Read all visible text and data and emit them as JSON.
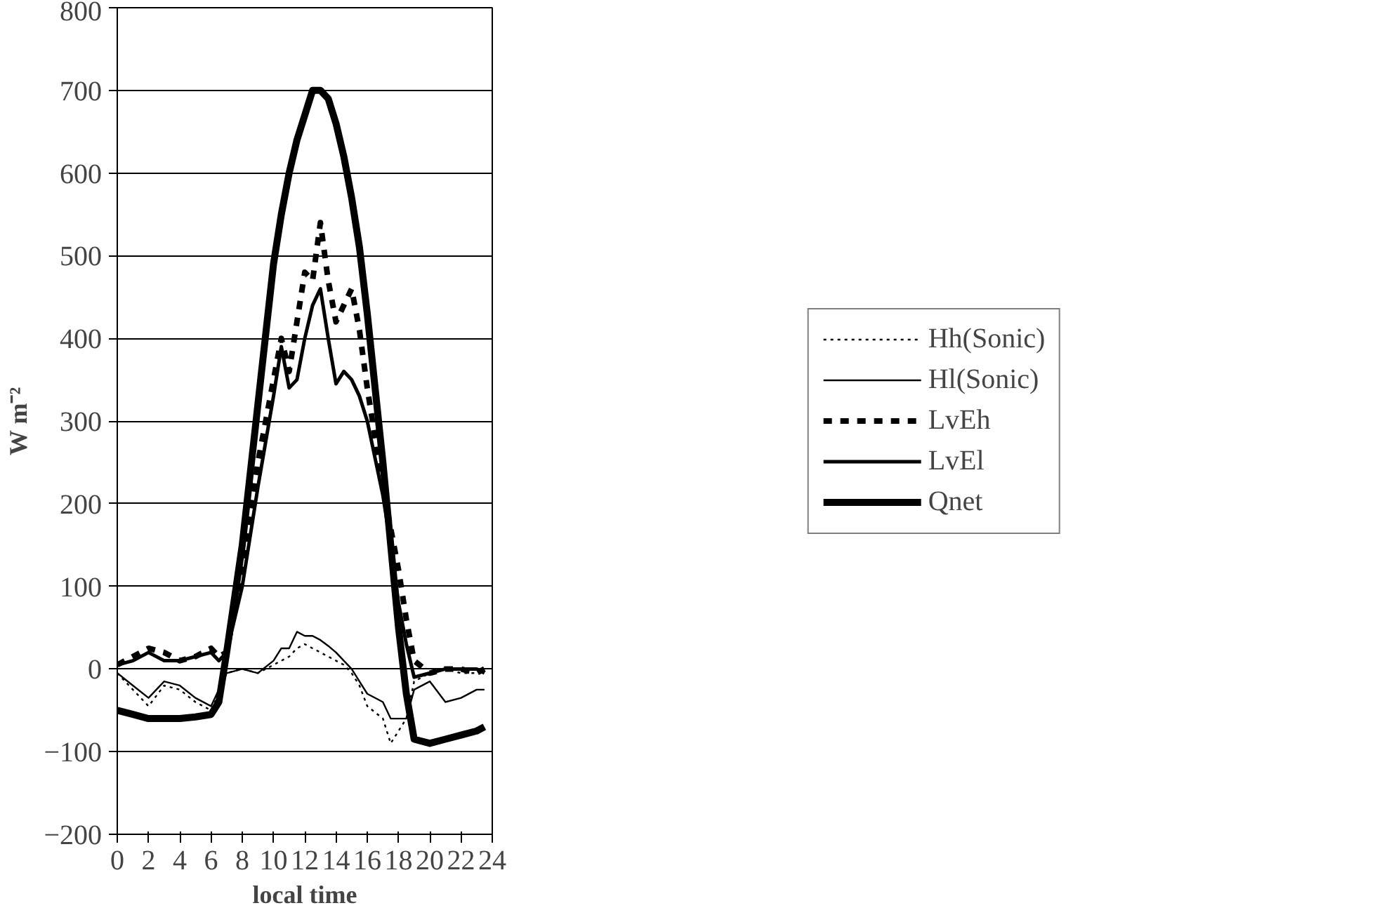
{
  "chart_data": {
    "type": "line",
    "xlabel": "local time",
    "ylabel": "W m⁻²",
    "xlim": [
      0,
      24
    ],
    "xticks": [
      0,
      2,
      4,
      6,
      8,
      10,
      12,
      14,
      16,
      18,
      20,
      22,
      24
    ],
    "ylim": [
      -200,
      800
    ],
    "yticks": [
      -200,
      -100,
      0,
      100,
      200,
      300,
      400,
      500,
      600,
      700,
      800
    ],
    "grid": "y",
    "legend": "right",
    "marker": "none",
    "x": [
      0,
      1,
      2,
      3,
      4,
      5,
      6,
      6.5,
      7,
      8,
      9,
      10,
      10.5,
      11,
      11.5,
      12,
      12.5,
      13,
      13.5,
      14,
      14.5,
      15,
      15.5,
      16,
      17,
      17.5,
      18,
      18.5,
      19,
      20,
      21,
      22,
      23,
      23.5
    ],
    "series": [
      {
        "name": "Hh(Sonic)",
        "color": "#000000",
        "line_style": "dotted",
        "values": [
          -5,
          -25,
          -45,
          -20,
          -25,
          -40,
          -50,
          -30,
          -5,
          0,
          -5,
          5,
          10,
          15,
          25,
          30,
          25,
          20,
          15,
          10,
          5,
          -5,
          -20,
          -45,
          -60,
          -90,
          -75,
          -60,
          -15,
          -5,
          0,
          -5,
          -5,
          0
        ]
      },
      {
        "name": "Hl(Sonic)",
        "color": "#000000",
        "line_style": "solid",
        "values": [
          -5,
          -20,
          -35,
          -15,
          -20,
          -35,
          -45,
          -25,
          -5,
          0,
          -5,
          10,
          25,
          25,
          45,
          40,
          40,
          35,
          28,
          20,
          10,
          0,
          -15,
          -30,
          -40,
          -60,
          -60,
          -60,
          -25,
          -15,
          -40,
          -35,
          -25,
          -25
        ]
      },
      {
        "name": "LvEh",
        "color": "#000000",
        "line_style": "dashed",
        "values": [
          5,
          15,
          25,
          20,
          10,
          15,
          25,
          15,
          20,
          120,
          250,
          350,
          400,
          360,
          420,
          480,
          470,
          540,
          470,
          420,
          440,
          460,
          410,
          340,
          220,
          170,
          120,
          60,
          10,
          -5,
          0,
          0,
          -5,
          0
        ]
      },
      {
        "name": "LvEl",
        "color": "#000000",
        "line_style": "solid",
        "values": [
          5,
          10,
          20,
          10,
          10,
          15,
          20,
          10,
          20,
          100,
          220,
          330,
          390,
          340,
          350,
          400,
          440,
          460,
          400,
          345,
          360,
          350,
          330,
          300,
          210,
          150,
          80,
          30,
          -10,
          -5,
          0,
          0,
          0,
          -5
        ]
      },
      {
        "name": "Qnet",
        "color": "#000000",
        "line_style": "solid",
        "values": [
          -50,
          -55,
          -60,
          -60,
          -60,
          -58,
          -55,
          -40,
          20,
          150,
          320,
          490,
          550,
          600,
          640,
          670,
          700,
          700,
          690,
          660,
          620,
          570,
          510,
          430,
          250,
          150,
          50,
          -30,
          -85,
          -90,
          -85,
          -80,
          -75,
          -70
        ]
      }
    ]
  }
}
